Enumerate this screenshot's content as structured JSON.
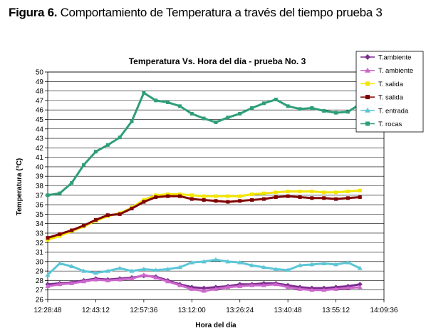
{
  "figure_caption": {
    "prefix": "Figura 6.",
    "text": " Comportamiento de Temperatura a través del tiempo prueba 3"
  },
  "chart_data": {
    "type": "line",
    "title": "Temperatura Vs. Hora del día - prueba No. 3",
    "xlabel": "Hora del día",
    "ylabel": "Temperatura (°C)",
    "xlim": [
      "12:28:48",
      "14:09:36"
    ],
    "ylim": [
      26,
      50
    ],
    "y_ticks": [
      26,
      27,
      28,
      29,
      30,
      31,
      32,
      33,
      34,
      35,
      36,
      37,
      38,
      39,
      40,
      41,
      42,
      43,
      44,
      45,
      46,
      47,
      48,
      49,
      50
    ],
    "x_ticks": [
      "12:28:48",
      "12:43:12",
      "12:57:36",
      "13:12:00",
      "13:26:24",
      "13:40:48",
      "13:55:12",
      "14:09:36"
    ],
    "grid": "horizontal",
    "legend_position": "top-right",
    "x": [
      "12:28:48",
      "12:32:24",
      "12:36:00",
      "12:39:36",
      "12:43:12",
      "12:46:48",
      "12:50:24",
      "12:54:00",
      "12:57:36",
      "13:01:12",
      "13:04:48",
      "13:08:24",
      "13:12:00",
      "13:15:36",
      "13:19:12",
      "13:22:48",
      "13:26:24",
      "13:30:00",
      "13:33:36",
      "13:37:12",
      "13:40:48",
      "13:44:24",
      "13:48:00",
      "13:51:36",
      "13:55:12",
      "13:58:48",
      "14:02:24"
    ],
    "series": [
      {
        "name": "T.ambiente",
        "color": "#7b2d8e",
        "marker": "diamond",
        "values": [
          27.6,
          27.7,
          27.8,
          28.0,
          28.2,
          28.1,
          28.2,
          28.3,
          28.5,
          28.4,
          28.0,
          27.6,
          27.3,
          27.2,
          27.3,
          27.4,
          27.6,
          27.6,
          27.7,
          27.7,
          27.5,
          27.3,
          27.2,
          27.2,
          27.3,
          27.4,
          27.6
        ]
      },
      {
        "name": "T. ambiente",
        "color": "#cc66cc",
        "marker": "triangle",
        "values": [
          27.4,
          27.6,
          27.7,
          27.9,
          28.1,
          28.0,
          28.1,
          28.2,
          28.6,
          28.3,
          27.9,
          27.5,
          27.1,
          26.9,
          27.1,
          27.3,
          27.4,
          27.5,
          27.5,
          27.6,
          27.3,
          27.1,
          27.0,
          27.0,
          27.1,
          27.2,
          27.3
        ]
      },
      {
        "name": "T. salida",
        "color": "#f2e600",
        "marker": "square",
        "values": [
          32.3,
          32.7,
          33.2,
          33.7,
          34.3,
          34.8,
          35.1,
          35.7,
          36.5,
          37.0,
          37.1,
          37.1,
          37.0,
          36.9,
          36.9,
          36.9,
          36.9,
          37.1,
          37.2,
          37.3,
          37.4,
          37.4,
          37.4,
          37.3,
          37.3,
          37.4,
          37.5
        ]
      },
      {
        "name": "T. salida",
        "color": "#800000",
        "marker": "square",
        "values": [
          32.5,
          32.9,
          33.3,
          33.8,
          34.4,
          34.9,
          35.0,
          35.6,
          36.3,
          36.8,
          36.9,
          36.9,
          36.6,
          36.5,
          36.4,
          36.3,
          36.4,
          36.5,
          36.6,
          36.8,
          36.9,
          36.8,
          36.7,
          36.7,
          36.6,
          36.7,
          36.8
        ]
      },
      {
        "name": "T. entrada",
        "color": "#5bc6d6",
        "marker": "triangle",
        "values": [
          28.6,
          29.8,
          29.5,
          29.0,
          28.8,
          29.0,
          29.3,
          29.0,
          29.2,
          29.1,
          29.2,
          29.4,
          29.9,
          30.0,
          30.2,
          30.0,
          29.9,
          29.6,
          29.4,
          29.2,
          29.1,
          29.6,
          29.7,
          29.8,
          29.7,
          29.9,
          29.3
        ]
      },
      {
        "name": "T. rocas",
        "color": "#2e9e7a",
        "marker": "square",
        "values": [
          37.0,
          37.2,
          38.3,
          40.2,
          41.6,
          42.3,
          43.1,
          44.8,
          47.8,
          47.0,
          46.8,
          46.4,
          45.6,
          45.1,
          44.7,
          45.2,
          45.6,
          46.2,
          46.7,
          47.1,
          46.4,
          46.1,
          46.2,
          45.9,
          45.7,
          45.8,
          46.6
        ]
      }
    ]
  }
}
